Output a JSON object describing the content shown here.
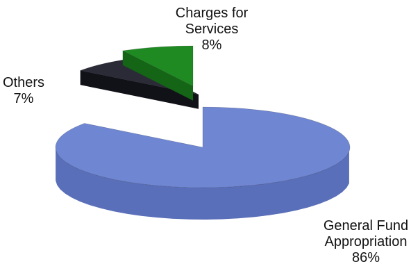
{
  "chart_data": {
    "type": "pie",
    "style": "3d-exploded",
    "slices": [
      {
        "key": "general",
        "label_lines": [
          "General Fund",
          "Appropriation"
        ],
        "percent_label": "86%",
        "value": 86,
        "color": "#6F86D2",
        "side_color": "#5A6FB9"
      },
      {
        "key": "others",
        "label_lines": [
          "Others"
        ],
        "percent_label": "7%",
        "value": 7,
        "color": "#2B2B38",
        "side_color": "#111118"
      },
      {
        "key": "services",
        "label_lines": [
          "Charges for",
          "Services"
        ],
        "percent_label": "8%",
        "value": 8,
        "color": "#1F8A22",
        "side_color": "#146516"
      }
    ]
  }
}
